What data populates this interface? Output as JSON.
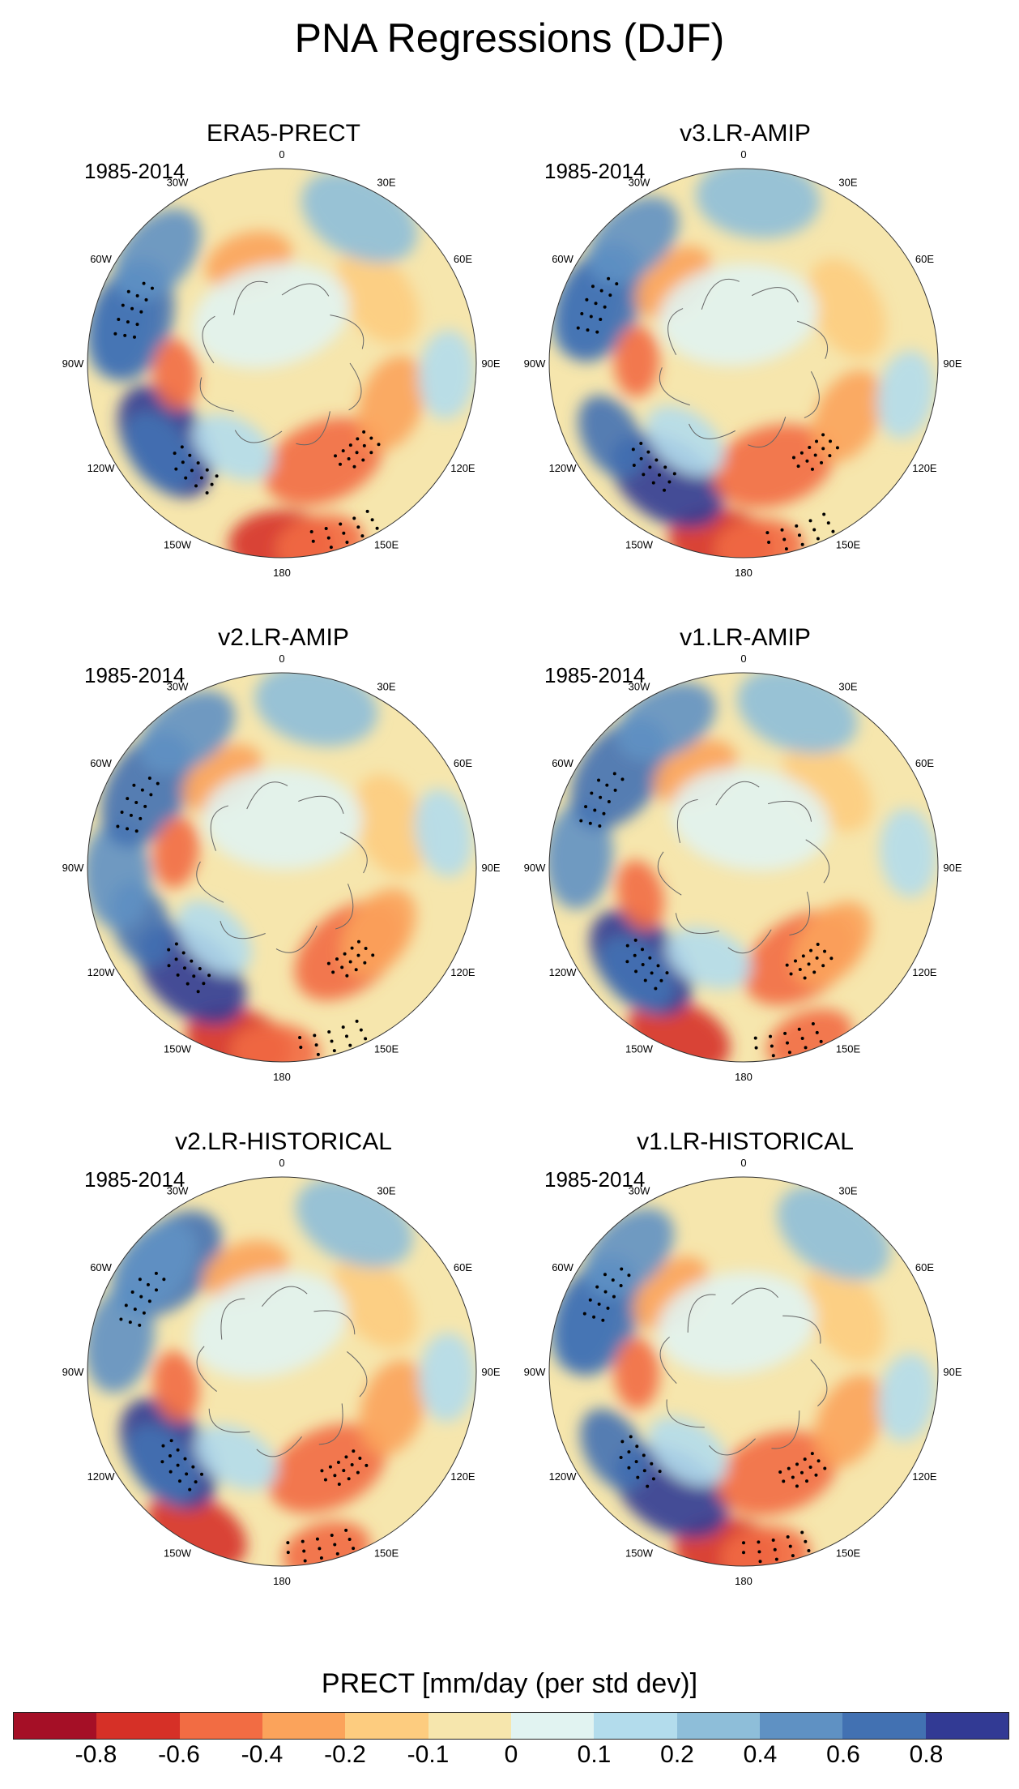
{
  "figure": {
    "title": "PNA Regressions (DJF)"
  },
  "lon_labels": [
    "180",
    "150E",
    "120E",
    "90E",
    "60E",
    "30E",
    "0",
    "30W",
    "60W",
    "90W",
    "120W",
    "150W"
  ],
  "panels": [
    {
      "title": "ERA5-PRECT",
      "period": "1985-2014"
    },
    {
      "title": "v3.LR-AMIP",
      "period": "1985-2014"
    },
    {
      "title": "v2.LR-AMIP",
      "period": "1985-2014"
    },
    {
      "title": "v1.LR-AMIP",
      "period": "1985-2014"
    },
    {
      "title": "v2.LR-HISTORICAL",
      "period": "1985-2014"
    },
    {
      "title": "v1.LR-HISTORICAL",
      "period": "1985-2014"
    }
  ],
  "colorbar": {
    "title": "PRECT [mm/day (per std dev)]",
    "ticks": [
      "-0.8",
      "-0.6",
      "-0.4",
      "-0.2",
      "-0.1",
      "0",
      "0.1",
      "0.2",
      "0.4",
      "0.6",
      "0.8"
    ],
    "colors": [
      "#a50f26",
      "#d63027",
      "#f26c43",
      "#fba35b",
      "#fdcc7f",
      "#f6e6ad",
      "#e1f3f1",
      "#b3dcec",
      "#8ebed9",
      "#5f91c3",
      "#4271b2",
      "#323a94"
    ]
  }
}
